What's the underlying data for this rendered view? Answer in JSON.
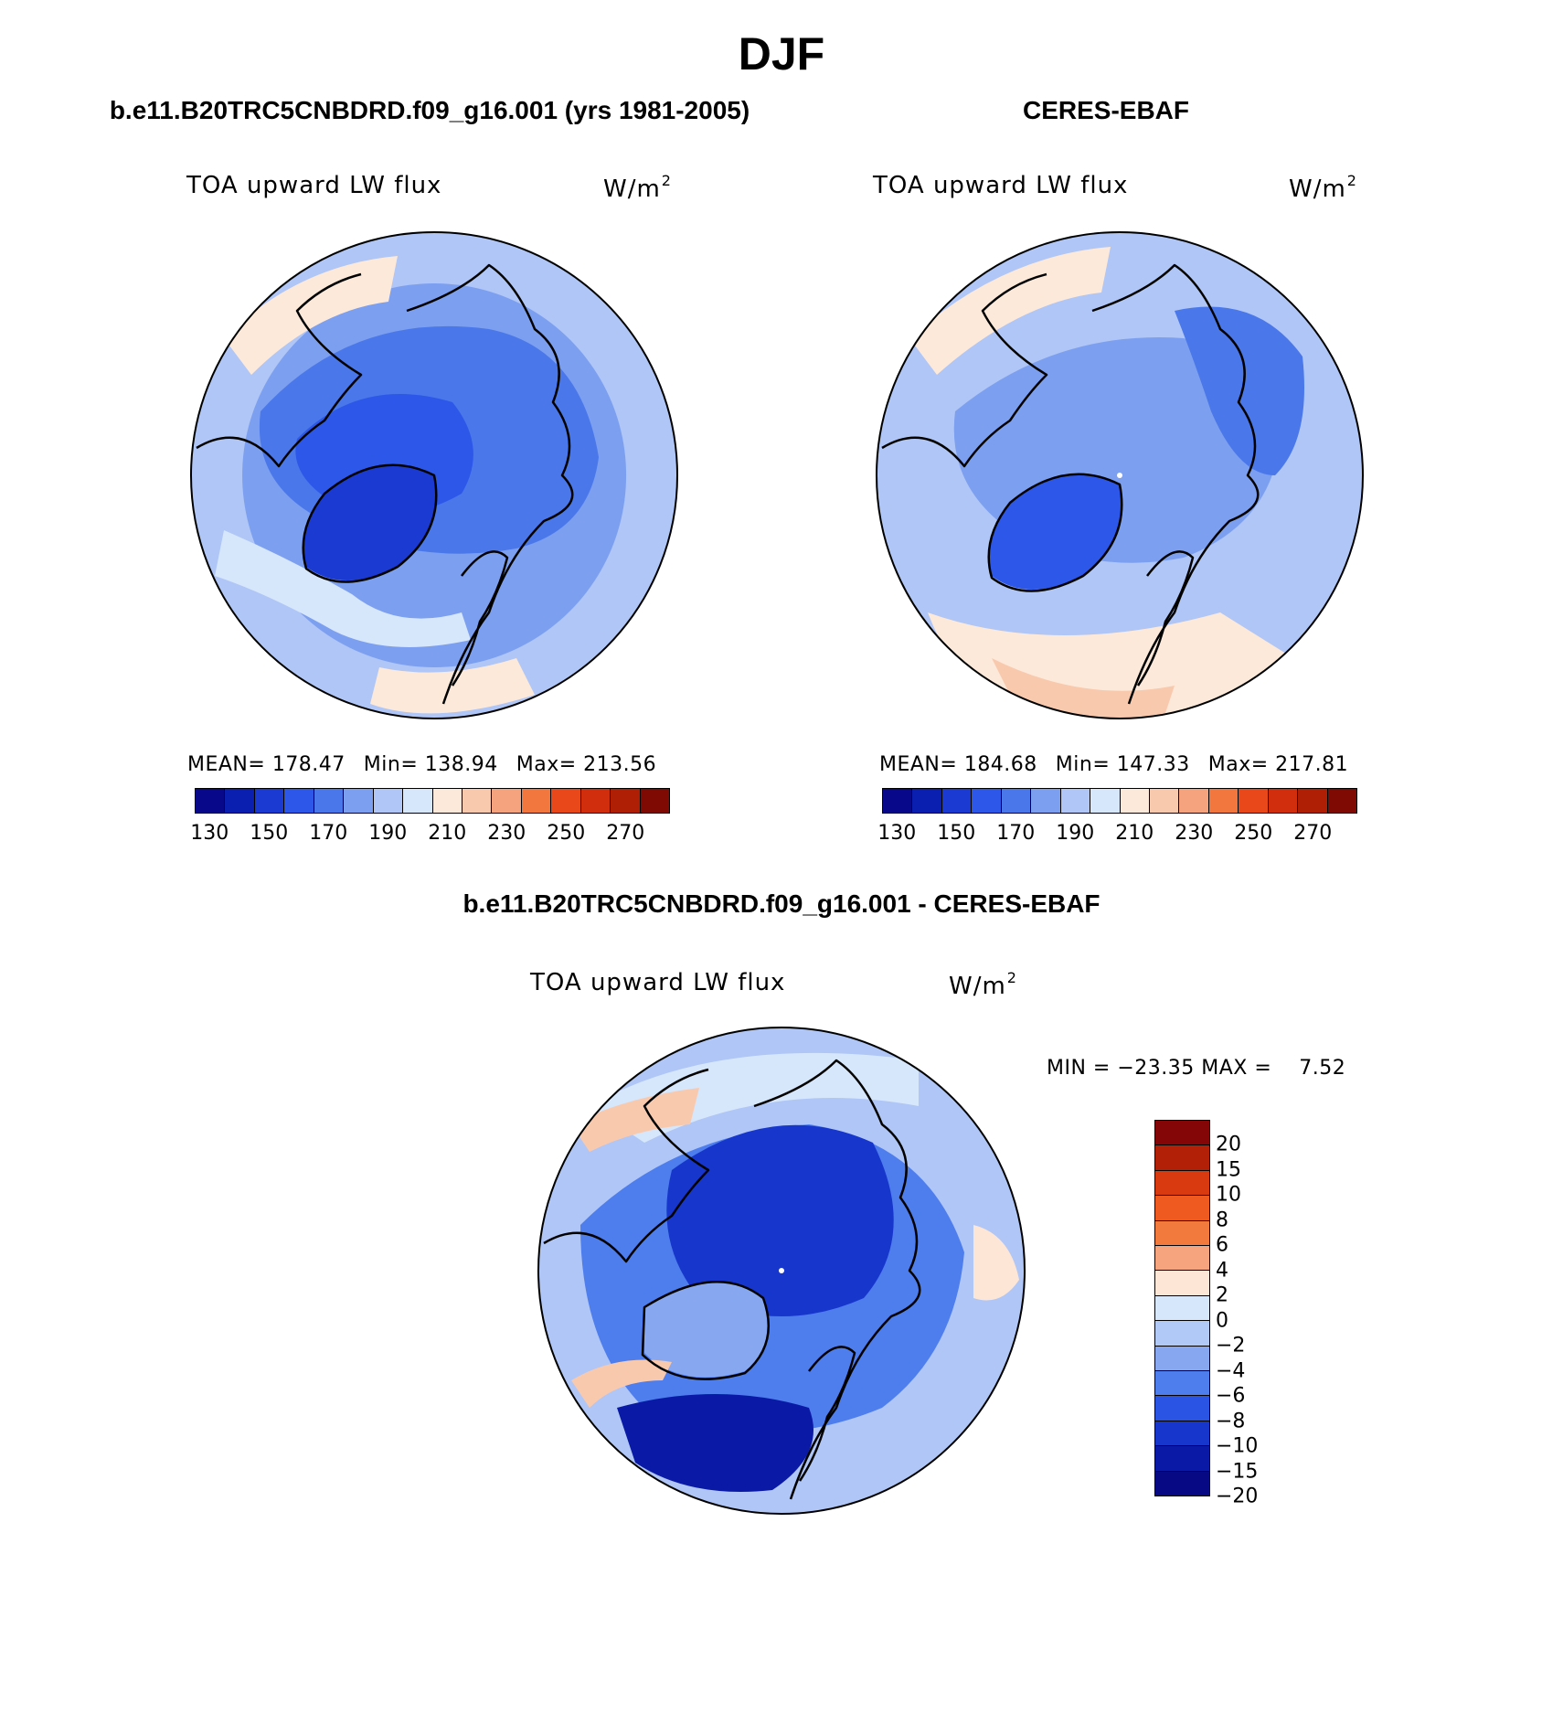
{
  "title": "DJF",
  "left_panel": {
    "title": "b.e11.B20TRC5CNBDRD.f09_g16.001 (yrs 1981-2005)",
    "variable": "TOA upward LW flux",
    "units": "W/m",
    "units_sup": "2",
    "mean_label": "MEAN= 178.47",
    "min_label": "Min= 138.94",
    "max_label": "Max= 213.56"
  },
  "right_panel": {
    "title": "CERES-EBAF",
    "variable": "TOA upward LW flux",
    "units": "W/m",
    "units_sup": "2",
    "mean_label": "MEAN= 184.68",
    "min_label": "Min= 147.33",
    "max_label": "Max= 217.81"
  },
  "diff_panel": {
    "title": "b.e11.B20TRC5CNBDRD.f09_g16.001 - CERES-EBAF",
    "variable": "TOA upward LW flux",
    "units": "W/m",
    "units_sup": "2",
    "minmax_label": "MIN = −23.35 MAX =    7.52"
  },
  "abs_colorbar": {
    "colors": [
      "#08088a",
      "#0a1fb0",
      "#1a3ad2",
      "#2d57e8",
      "#4a78ea",
      "#7c9ff0",
      "#afc6f6",
      "#d6e6fb",
      "#fde9d9",
      "#f9c9ae",
      "#f5a27f",
      "#f2773f",
      "#e8481a",
      "#d02e0c",
      "#ae1f06",
      "#7f0a04"
    ],
    "tick_labels": [
      "130",
      "150",
      "170",
      "190",
      "210",
      "230",
      "250",
      "270"
    ]
  },
  "diff_colorbar": {
    "colors_top_to_bottom": [
      "#850606",
      "#b32008",
      "#d93a10",
      "#ee5a1f",
      "#f27a3d",
      "#f6a47e",
      "#fde6d5",
      "#d6e6fb",
      "#b1c9f6",
      "#87a8f1",
      "#4e7ded",
      "#2a55e4",
      "#1736cc",
      "#0a1aa6",
      "#060884"
    ],
    "tick_labels": [
      "20",
      "15",
      "10",
      "8",
      "6",
      "4",
      "2",
      "0",
      "−2",
      "−4",
      "−6",
      "−8",
      "−10",
      "−15",
      "−20"
    ]
  },
  "maps": {
    "left": {
      "background": "#7c9ff0"
    },
    "right": {
      "background": "#afc6f6"
    },
    "diff": {
      "background": "#afc6f6"
    }
  }
}
